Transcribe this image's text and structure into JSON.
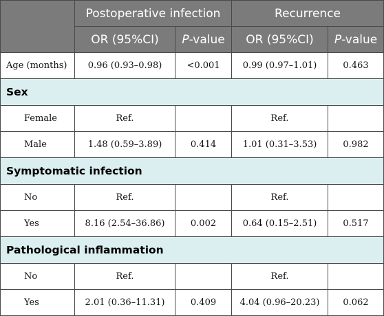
{
  "headers": {
    "group1": "Postoperative infection",
    "group2": "Recurrence",
    "or_ci": "OR (95%CI)",
    "p_prefix": "P",
    "p_suffix": "-value"
  },
  "rows": {
    "age": {
      "label": "Age (months)",
      "or1": "0.96 (0.93–0.98)",
      "p1": "<0.001",
      "or2": "0.99 (0.97–1.01)",
      "p2": "0.463"
    },
    "sex_title": "Sex",
    "sex_female": {
      "label": "Female",
      "or1": "Ref.",
      "p1": "",
      "or2": "Ref.",
      "p2": ""
    },
    "sex_male": {
      "label": "Male",
      "or1": "1.48 (0.59–3.89)",
      "p1": "0.414",
      "or2": "1.01 (0.31–3.53)",
      "p2": "0.982"
    },
    "sym_title": "Symptomatic infection",
    "sym_no": {
      "label": "No",
      "or1": "Ref.",
      "p1": "",
      "or2": "Ref.",
      "p2": ""
    },
    "sym_yes": {
      "label": "Yes",
      "or1": "8.16 (2.54–36.86)",
      "p1": "0.002",
      "or2": "0.64 (0.15–2.51)",
      "p2": "0.517"
    },
    "path_title": "Pathological inflammation",
    "path_no": {
      "label": "No",
      "or1": "Ref.",
      "p1": "",
      "or2": "Ref.",
      "p2": ""
    },
    "path_yes": {
      "label": "Yes",
      "or1": "2.01 (0.36–11.31)",
      "p1": "0.409",
      "or2": "4.04 (0.96–20.23)",
      "p2": "0.062"
    }
  }
}
